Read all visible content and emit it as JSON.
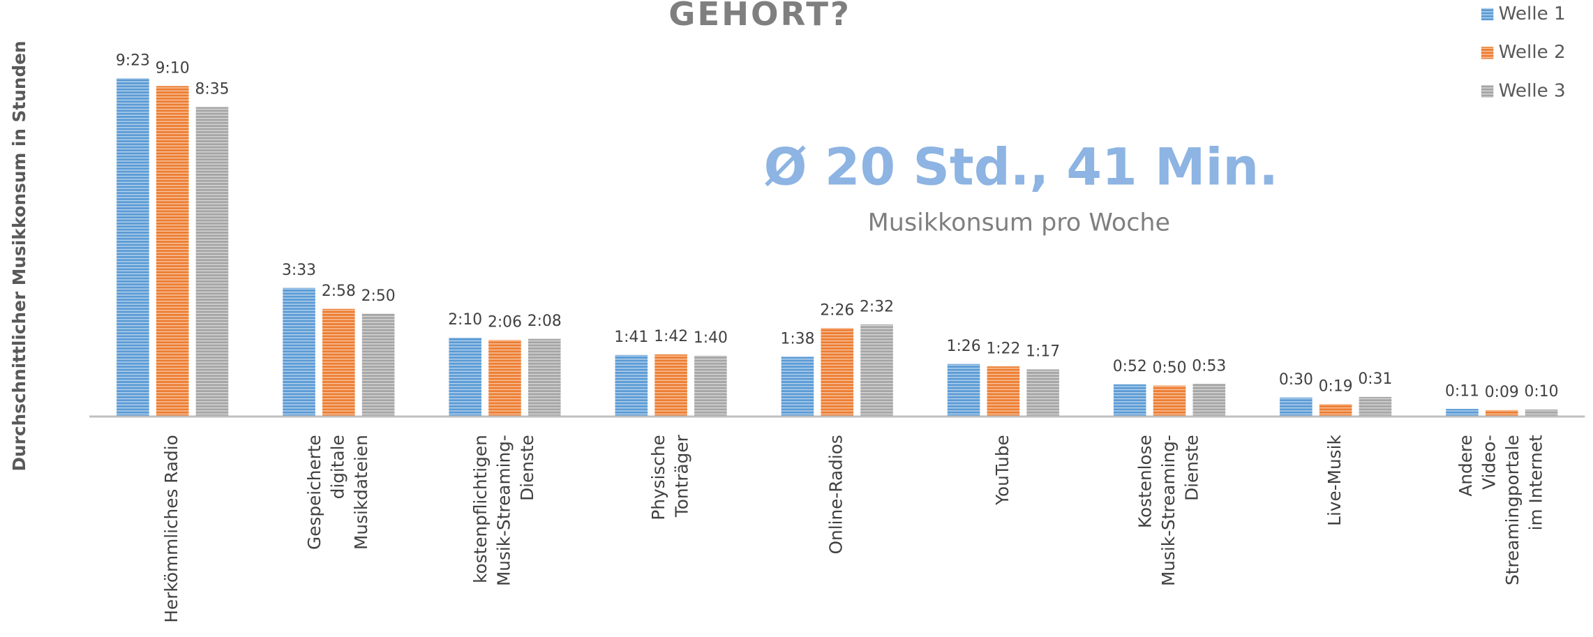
{
  "chart_data": {
    "type": "bar",
    "title": "GEHÖRT?",
    "y_label": "Durchschnittlicher Musikkonsum in Stunden",
    "annotations": [
      "Ø 20 Std., 41 Min.",
      "Musikkonsum pro Woche"
    ],
    "categories": [
      "Herkömmliches Radio",
      "Gespeicherte\ndigitale\nMusikdateien",
      "kostenpflichtigen\nMusik-Streaming-\nDienste",
      "Physische\nTonträger",
      "Online-Radios",
      "YouTube",
      "Kostenlose\nMusik-Streaming-\nDienste",
      "Live-Musik",
      "Andere\nVideo-\nStreamingportale\nim Internet"
    ],
    "series": [
      {
        "name": "Welle 1",
        "color": "#5b9bd5",
        "values": [
          563,
          213,
          130,
          101,
          98,
          86,
          52,
          30,
          11
        ],
        "value_labels": [
          "9:23",
          "3:33",
          "2:10",
          "1:41",
          "1:38",
          "1:26",
          "0:52",
          "0:30",
          "0:11"
        ]
      },
      {
        "name": "Welle 2",
        "color": "#ed7d31",
        "values": [
          550,
          178,
          126,
          102,
          146,
          82,
          50,
          19,
          9
        ],
        "value_labels": [
          "9:10",
          "2:58",
          "2:06",
          "1:42",
          "2:26",
          "1:22",
          "0:50",
          "0:19",
          "0:09"
        ]
      },
      {
        "name": "Welle 3",
        "color": "#a5a5a5",
        "values": [
          515,
          170,
          128,
          100,
          152,
          77,
          53,
          31,
          10
        ],
        "value_labels": [
          "8:35",
          "2:50",
          "2:08",
          "1:40",
          "2:32",
          "1:17",
          "0:53",
          "0:31",
          "0:10"
        ]
      }
    ],
    "legend": "top-right"
  }
}
